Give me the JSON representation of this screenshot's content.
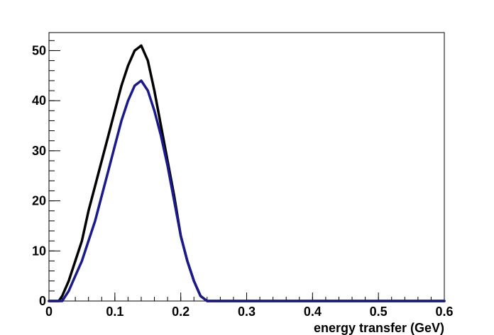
{
  "chart_data": {
    "type": "line",
    "title": "",
    "xlabel": "energy transfer (GeV)",
    "ylabel": "",
    "xlim": [
      0,
      0.6
    ],
    "ylim": [
      0,
      53.6
    ],
    "grid": false,
    "legend": "none",
    "x_ticks": [
      0,
      0.1,
      0.2,
      0.3,
      0.4,
      0.5,
      0.6
    ],
    "x_tick_labels": [
      "0",
      "0.1",
      "0.2",
      "0.3",
      "0.4",
      "0.5",
      "0.6"
    ],
    "y_ticks": [
      0,
      10,
      20,
      30,
      40,
      50
    ],
    "y_tick_labels": [
      "0",
      "10",
      "20",
      "30",
      "40",
      "50"
    ],
    "series": [
      {
        "color": "#000000",
        "x": [
          0,
          0.015,
          0.02,
          0.03,
          0.04,
          0.05,
          0.06,
          0.07,
          0.08,
          0.09,
          0.1,
          0.11,
          0.12,
          0.13,
          0.14,
          0.15,
          0.16,
          0.17,
          0.18,
          0.19,
          0.2,
          0.21,
          0.22,
          0.23,
          0.24,
          0.25,
          0.26,
          0.3,
          0.4,
          0.5,
          0.6
        ],
        "y": [
          0,
          0,
          1,
          4,
          8,
          12,
          18,
          23,
          28,
          33,
          38,
          43,
          47,
          50,
          51,
          48,
          42,
          35,
          28,
          21,
          13,
          8,
          4,
          1,
          0,
          0,
          0,
          0,
          0,
          0,
          0
        ]
      },
      {
        "color": "#1a1a8c",
        "x": [
          0,
          0.015,
          0.02,
          0.03,
          0.04,
          0.05,
          0.06,
          0.07,
          0.08,
          0.09,
          0.1,
          0.11,
          0.12,
          0.13,
          0.14,
          0.15,
          0.16,
          0.17,
          0.18,
          0.19,
          0.2,
          0.21,
          0.22,
          0.23,
          0.24,
          0.25,
          0.26,
          0.3,
          0.4,
          0.5,
          0.6
        ],
        "y": [
          0,
          0,
          0,
          2,
          5,
          8,
          12,
          16,
          21,
          26,
          31,
          36,
          40,
          43,
          44,
          42,
          38,
          33,
          27,
          20,
          13,
          8,
          4,
          1,
          0,
          0,
          0,
          0,
          0,
          0,
          0
        ]
      }
    ]
  }
}
